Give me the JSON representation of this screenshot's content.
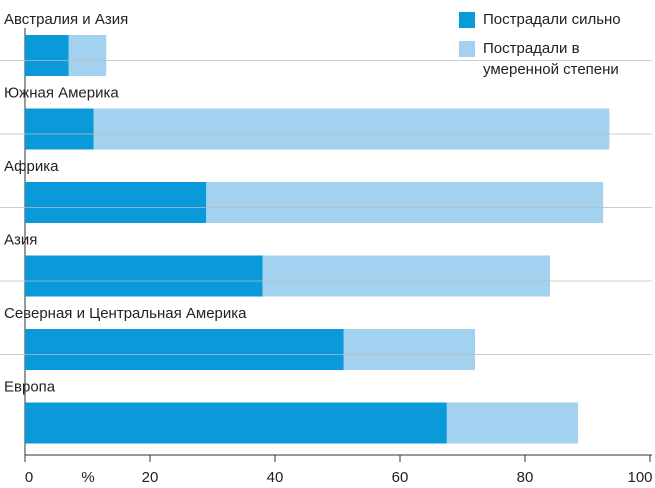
{
  "chart_data": {
    "type": "stacked_barh",
    "categories": [
      "Австралия и Азия",
      "Южная Америка",
      "Африка",
      "Азия",
      "Северная и Центральная Америка",
      "Европа"
    ],
    "series": [
      {
        "name": "Пострадали сильно",
        "color": "#0a9ad9",
        "values": [
          7,
          11,
          29,
          38,
          51,
          67.5
        ]
      },
      {
        "name": "Пострадали в умеренной степени",
        "color": "#a2d2f0",
        "values": [
          6,
          82.5,
          63.5,
          46,
          21,
          21
        ]
      }
    ],
    "xlabel": "%",
    "xlim": [
      0,
      100
    ],
    "xticks": [
      0,
      20,
      40,
      60,
      80,
      100
    ],
    "legend": "top-right"
  }
}
